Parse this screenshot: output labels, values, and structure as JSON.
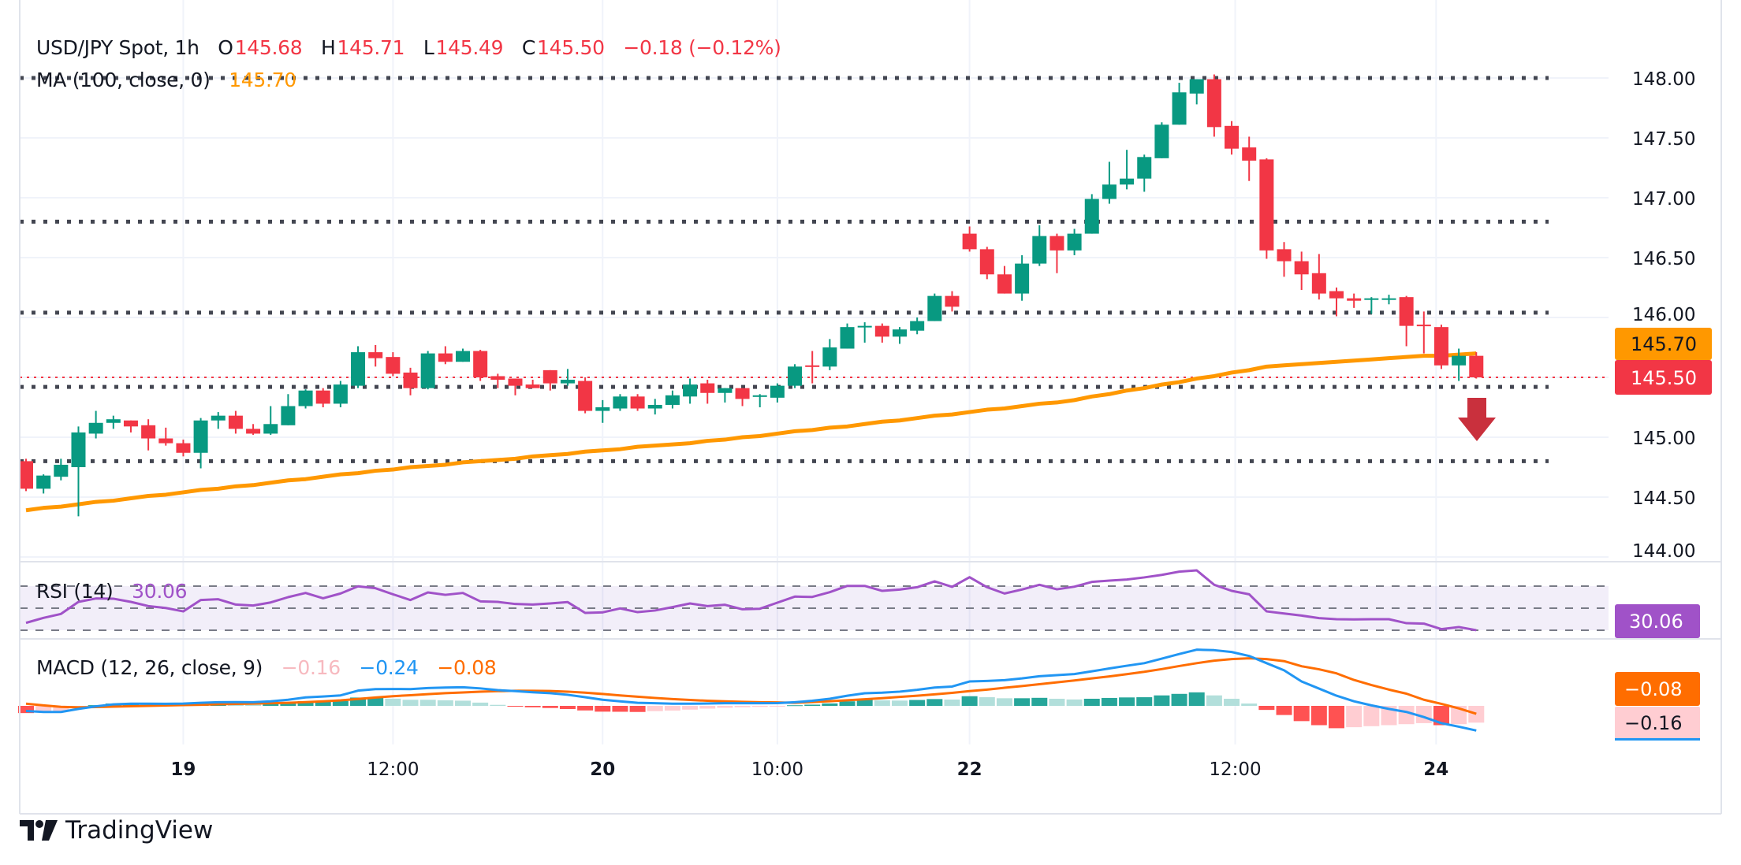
{
  "header": {
    "symbol": "USD/JPY Spot, 1h",
    "open_label": "O",
    "open": "145.68",
    "high_label": "H",
    "high": "145.71",
    "low_label": "L",
    "low": "145.49",
    "close_label": "C",
    "close": "145.50",
    "change": "−0.18 (−0.12%)"
  },
  "ma": {
    "label": "MA (100, close, 0)",
    "value": "145.70"
  },
  "rsi": {
    "label": "RSI (14)",
    "value": "30.06"
  },
  "macd": {
    "label": "MACD (12, 26, close, 9)",
    "hist_value": "−0.16",
    "macd_value": "−0.24",
    "signal_value": "−0.08"
  },
  "price_tags": {
    "ma": "145.70",
    "last": "145.50",
    "rsi": "30.06",
    "macd_signal": "−0.08",
    "macd_hist": "−0.16"
  },
  "logo": {
    "text": "TradingView"
  },
  "colors": {
    "up": "#089981",
    "down": "#f23645",
    "ma": "#ff9800",
    "rsi": "#a052c8",
    "macd": "#2196f3",
    "signal": "#ff6d00",
    "hist_up_strong": "#26a69a",
    "hist_up_weak": "#b2dfdb",
    "hist_down_strong": "#ff5252",
    "hist_down_weak": "#ffcdd2",
    "level": "#434651",
    "arrow": "#c9303d"
  },
  "chart_data": {
    "type": "candlestick",
    "price_axis": {
      "ticks": [
        "148.00",
        "147.50",
        "147.00",
        "146.50",
        "146.00",
        "145.50",
        "145.00",
        "144.50",
        "144.00"
      ],
      "range": [
        144.0,
        148.0
      ]
    },
    "time_axis": {
      "ticks": [
        {
          "label": "19",
          "bar": 9,
          "day": true
        },
        {
          "label": "12:00",
          "bar": 21,
          "day": false
        },
        {
          "label": "20",
          "bar": 33,
          "day": true
        },
        {
          "label": "10:00",
          "bar": 43,
          "day": false
        },
        {
          "label": "22",
          "bar": 54,
          "day": true
        },
        {
          "label": "12:00",
          "bar": 69.2,
          "day": false
        },
        {
          "label": "24",
          "bar": 80.7,
          "day": true
        }
      ]
    },
    "levels": [
      148.0,
      146.8,
      146.04,
      145.42,
      144.8
    ],
    "last_price": 145.5,
    "annotation": "down-arrow",
    "ohlc": [
      [
        144.8,
        144.82,
        144.55,
        144.57
      ],
      [
        144.57,
        144.69,
        144.53,
        144.68
      ],
      [
        144.67,
        144.82,
        144.64,
        144.77
      ],
      [
        144.75,
        145.09,
        144.34,
        145.04
      ],
      [
        145.03,
        145.22,
        144.99,
        145.12
      ],
      [
        145.12,
        145.18,
        145.07,
        145.15
      ],
      [
        145.14,
        145.14,
        145.04,
        145.09
      ],
      [
        145.1,
        145.15,
        144.89,
        144.99
      ],
      [
        144.99,
        145.08,
        144.93,
        144.95
      ],
      [
        144.95,
        144.98,
        144.84,
        144.87
      ],
      [
        144.87,
        145.16,
        144.74,
        145.14
      ],
      [
        145.14,
        145.21,
        145.07,
        145.18
      ],
      [
        145.18,
        145.22,
        145.03,
        145.07
      ],
      [
        145.07,
        145.11,
        145.02,
        145.03
      ],
      [
        145.03,
        145.26,
        145.02,
        145.11
      ],
      [
        145.1,
        145.36,
        145.1,
        145.26
      ],
      [
        145.26,
        145.4,
        145.24,
        145.39
      ],
      [
        145.39,
        145.41,
        145.25,
        145.28
      ],
      [
        145.28,
        145.47,
        145.25,
        145.44
      ],
      [
        145.43,
        145.76,
        145.41,
        145.71
      ],
      [
        145.71,
        145.77,
        145.59,
        145.66
      ],
      [
        145.67,
        145.71,
        145.51,
        145.53
      ],
      [
        145.54,
        145.58,
        145.35,
        145.41
      ],
      [
        145.41,
        145.72,
        145.4,
        145.7
      ],
      [
        145.7,
        145.76,
        145.61,
        145.63
      ],
      [
        145.63,
        145.74,
        145.63,
        145.72
      ],
      [
        145.72,
        145.73,
        145.47,
        145.5
      ],
      [
        145.51,
        145.53,
        145.41,
        145.48
      ],
      [
        145.49,
        145.49,
        145.35,
        145.43
      ],
      [
        145.44,
        145.48,
        145.41,
        145.41
      ],
      [
        145.56,
        145.56,
        145.39,
        145.45
      ],
      [
        145.45,
        145.57,
        145.43,
        145.48
      ],
      [
        145.47,
        145.5,
        145.2,
        145.22
      ],
      [
        145.22,
        145.31,
        145.12,
        145.25
      ],
      [
        145.24,
        145.36,
        145.22,
        145.34
      ],
      [
        145.34,
        145.36,
        145.22,
        145.24
      ],
      [
        145.24,
        145.32,
        145.19,
        145.27
      ],
      [
        145.27,
        145.39,
        145.24,
        145.35
      ],
      [
        145.34,
        145.49,
        145.28,
        145.44
      ],
      [
        145.45,
        145.48,
        145.28,
        145.37
      ],
      [
        145.37,
        145.41,
        145.29,
        145.41
      ],
      [
        145.41,
        145.41,
        145.26,
        145.32
      ],
      [
        145.34,
        145.36,
        145.25,
        145.35
      ],
      [
        145.33,
        145.45,
        145.29,
        145.43
      ],
      [
        145.43,
        145.61,
        145.41,
        145.59
      ],
      [
        145.6,
        145.72,
        145.45,
        145.59
      ],
      [
        145.59,
        145.82,
        145.56,
        145.75
      ],
      [
        145.74,
        145.95,
        145.74,
        145.92
      ],
      [
        145.92,
        145.96,
        145.79,
        145.93
      ],
      [
        145.93,
        145.95,
        145.79,
        145.84
      ],
      [
        145.84,
        145.92,
        145.78,
        145.9
      ],
      [
        145.89,
        146.0,
        145.86,
        145.97
      ],
      [
        145.97,
        146.2,
        145.97,
        146.18
      ],
      [
        146.18,
        146.22,
        146.05,
        146.09
      ],
      [
        146.7,
        146.76,
        146.55,
        146.57
      ],
      [
        146.57,
        146.59,
        146.32,
        146.36
      ],
      [
        146.36,
        146.43,
        146.2,
        146.2
      ],
      [
        146.2,
        146.52,
        146.14,
        146.45
      ],
      [
        146.45,
        146.77,
        146.43,
        146.68
      ],
      [
        146.68,
        146.7,
        146.37,
        146.56
      ],
      [
        146.56,
        146.74,
        146.52,
        146.7
      ],
      [
        146.7,
        147.03,
        146.7,
        146.99
      ],
      [
        146.99,
        147.3,
        146.95,
        147.11
      ],
      [
        147.11,
        147.4,
        147.07,
        147.16
      ],
      [
        147.16,
        147.36,
        147.05,
        147.34
      ],
      [
        147.33,
        147.63,
        147.33,
        147.61
      ],
      [
        147.61,
        147.96,
        147.61,
        147.88
      ],
      [
        147.87,
        147.99,
        147.78,
        147.99
      ],
      [
        147.99,
        148.03,
        147.51,
        147.59
      ],
      [
        147.6,
        147.64,
        147.36,
        147.41
      ],
      [
        147.42,
        147.51,
        147.14,
        147.31
      ],
      [
        147.32,
        147.33,
        146.49,
        146.56
      ],
      [
        146.57,
        146.63,
        146.34,
        146.47
      ],
      [
        146.47,
        146.55,
        146.23,
        146.36
      ],
      [
        146.37,
        146.53,
        146.15,
        146.2
      ],
      [
        146.22,
        146.25,
        146.01,
        146.16
      ],
      [
        146.16,
        146.2,
        146.08,
        146.14
      ],
      [
        146.15,
        146.17,
        146.03,
        146.16
      ],
      [
        146.15,
        146.19,
        146.11,
        146.16
      ],
      [
        146.17,
        146.18,
        145.76,
        145.93
      ],
      [
        145.94,
        146.05,
        145.7,
        145.93
      ],
      [
        145.92,
        145.94,
        145.57,
        145.6
      ],
      [
        145.6,
        145.74,
        145.47,
        145.68
      ],
      [
        145.68,
        145.71,
        145.49,
        145.5
      ]
    ],
    "ma100": [
      144.39,
      144.41,
      144.42,
      144.44,
      144.46,
      144.47,
      144.49,
      144.51,
      144.52,
      144.54,
      144.56,
      144.57,
      144.59,
      144.6,
      144.62,
      144.64,
      144.65,
      144.67,
      144.69,
      144.7,
      144.72,
      144.73,
      144.75,
      144.76,
      144.77,
      144.79,
      144.8,
      144.81,
      144.82,
      144.84,
      144.85,
      144.86,
      144.88,
      144.89,
      144.9,
      144.92,
      144.93,
      144.94,
      144.95,
      144.97,
      144.98,
      145.0,
      145.01,
      145.03,
      145.05,
      145.06,
      145.08,
      145.09,
      145.11,
      145.13,
      145.14,
      145.16,
      145.18,
      145.19,
      145.21,
      145.23,
      145.24,
      145.26,
      145.28,
      145.29,
      145.31,
      145.34,
      145.36,
      145.39,
      145.41,
      145.44,
      145.46,
      145.49,
      145.51,
      145.54,
      145.56,
      145.59,
      145.6,
      145.61,
      145.62,
      145.63,
      145.64,
      145.65,
      145.66,
      145.67,
      145.68,
      145.68,
      145.69,
      145.7
    ],
    "rsi": {
      "levels": [
        70,
        50,
        30
      ],
      "values": [
        36.7,
        41.2,
        44.8,
        55.7,
        58.8,
        58.6,
        55.7,
        51.9,
        50.2,
        47.1,
        57.4,
        58.1,
        53.3,
        52.4,
        55.2,
        60.0,
        63.8,
        59.0,
        63.3,
        69.8,
        68.1,
        62.6,
        57.4,
        64.3,
        62.1,
        63.8,
        56.2,
        55.7,
        53.8,
        53.3,
        54.3,
        55.5,
        45.7,
        46.2,
        49.8,
        46.4,
        47.9,
        51.0,
        54.3,
        51.9,
        53.1,
        49.0,
        49.5,
        55.0,
        60.5,
        60.2,
        64.5,
        70.2,
        70.2,
        65.7,
        66.9,
        69.0,
        74.3,
        69.3,
        78.1,
        69.0,
        63.3,
        66.9,
        71.2,
        67.1,
        69.5,
        73.8,
        75.0,
        76.0,
        77.9,
        80.2,
        83.1,
        84.3,
        71.2,
        65.7,
        62.6,
        47.1,
        45.2,
        43.3,
        41.0,
        40.0,
        39.8,
        40.0,
        40.0,
        36.4,
        36.0,
        31.0,
        32.9,
        30.06
      ]
    },
    "macd": {
      "macd": [
        -0.05,
        -0.06,
        -0.06,
        -0.03,
        -0.005,
        0.015,
        0.021,
        0.021,
        0.02,
        0.022,
        0.03,
        0.036,
        0.037,
        0.036,
        0.045,
        0.06,
        0.083,
        0.092,
        0.103,
        0.15,
        0.165,
        0.166,
        0.165,
        0.175,
        0.18,
        0.183,
        0.172,
        0.155,
        0.145,
        0.134,
        0.125,
        0.109,
        0.085,
        0.06,
        0.045,
        0.03,
        0.026,
        0.021,
        0.021,
        0.023,
        0.026,
        0.026,
        0.026,
        0.027,
        0.036,
        0.05,
        0.07,
        0.1,
        0.124,
        0.13,
        0.14,
        0.158,
        0.18,
        0.19,
        0.24,
        0.245,
        0.253,
        0.27,
        0.292,
        0.302,
        0.313,
        0.34,
        0.368,
        0.395,
        0.42,
        0.465,
        0.51,
        0.553,
        0.548,
        0.53,
        0.491,
        0.42,
        0.35,
        0.24,
        0.17,
        0.1,
        0.045,
        0.005,
        -0.03,
        -0.06,
        -0.11,
        -0.17,
        -0.205,
        -0.243
      ],
      "signal": [
        0.021,
        0.005,
        -0.01,
        -0.015,
        -0.012,
        -0.008,
        -0.004,
        0.0,
        0.004,
        0.008,
        0.011,
        0.016,
        0.019,
        0.022,
        0.026,
        0.03,
        0.037,
        0.045,
        0.054,
        0.068,
        0.082,
        0.095,
        0.105,
        0.115,
        0.125,
        0.132,
        0.14,
        0.145,
        0.148,
        0.148,
        0.146,
        0.14,
        0.13,
        0.117,
        0.103,
        0.09,
        0.078,
        0.067,
        0.058,
        0.05,
        0.045,
        0.04,
        0.036,
        0.034,
        0.03,
        0.038,
        0.046,
        0.055,
        0.065,
        0.076,
        0.088,
        0.1,
        0.113,
        0.128,
        0.145,
        0.16,
        0.178,
        0.195,
        0.213,
        0.232,
        0.25,
        0.27,
        0.29,
        0.312,
        0.335,
        0.362,
        0.392,
        0.42,
        0.445,
        0.46,
        0.468,
        0.46,
        0.44,
        0.39,
        0.36,
        0.32,
        0.255,
        0.205,
        0.16,
        0.12,
        0.06,
        0.02,
        -0.025,
        -0.078
      ]
    }
  }
}
